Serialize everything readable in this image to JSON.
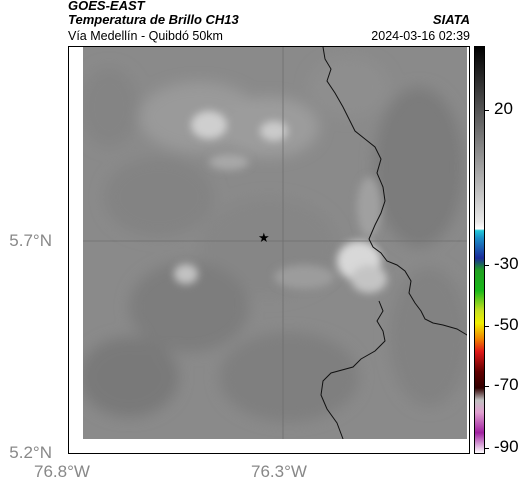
{
  "header": {
    "source": "GOES-EAST",
    "product": "Temperatura de Brillo CH13",
    "institution": "SIATA",
    "region": "Vía Medellín - Quibdó 50km",
    "timestamp": "2024-03-16 02:39"
  },
  "axes": {
    "lat_labels": [
      {
        "label": "5.7°N",
        "lat": 5.7
      },
      {
        "label": "5.2°N",
        "lat": 5.2
      }
    ],
    "lon_labels": [
      {
        "label": "76.8°W",
        "lon": -76.8
      },
      {
        "label": "76.3°W",
        "lon": -76.3
      }
    ],
    "gridlines": [
      {
        "lat": 5.7
      },
      {
        "lon": -76.3
      }
    ]
  },
  "map": {
    "marker": {
      "symbol": "★",
      "lat": 5.7,
      "lon": -76.32,
      "icon": "star-icon"
    }
  },
  "colorbar": {
    "ticks": [
      {
        "label": "20",
        "value": 20
      },
      {
        "label": "-30",
        "value": -30
      },
      {
        "label": "-50",
        "value": -50
      },
      {
        "label": "-70",
        "value": -70
      },
      {
        "label": "-90",
        "value": -90
      }
    ],
    "colors": {
      "warm": "#000000",
      "mid": "#e8e8e8",
      "cyan": "#22c8d8",
      "blue": "#1a2a9a",
      "green": "#18b818",
      "yellow": "#f0f000",
      "red": "#e01818",
      "dark": "#300000",
      "magenta": "#a020a0"
    }
  }
}
